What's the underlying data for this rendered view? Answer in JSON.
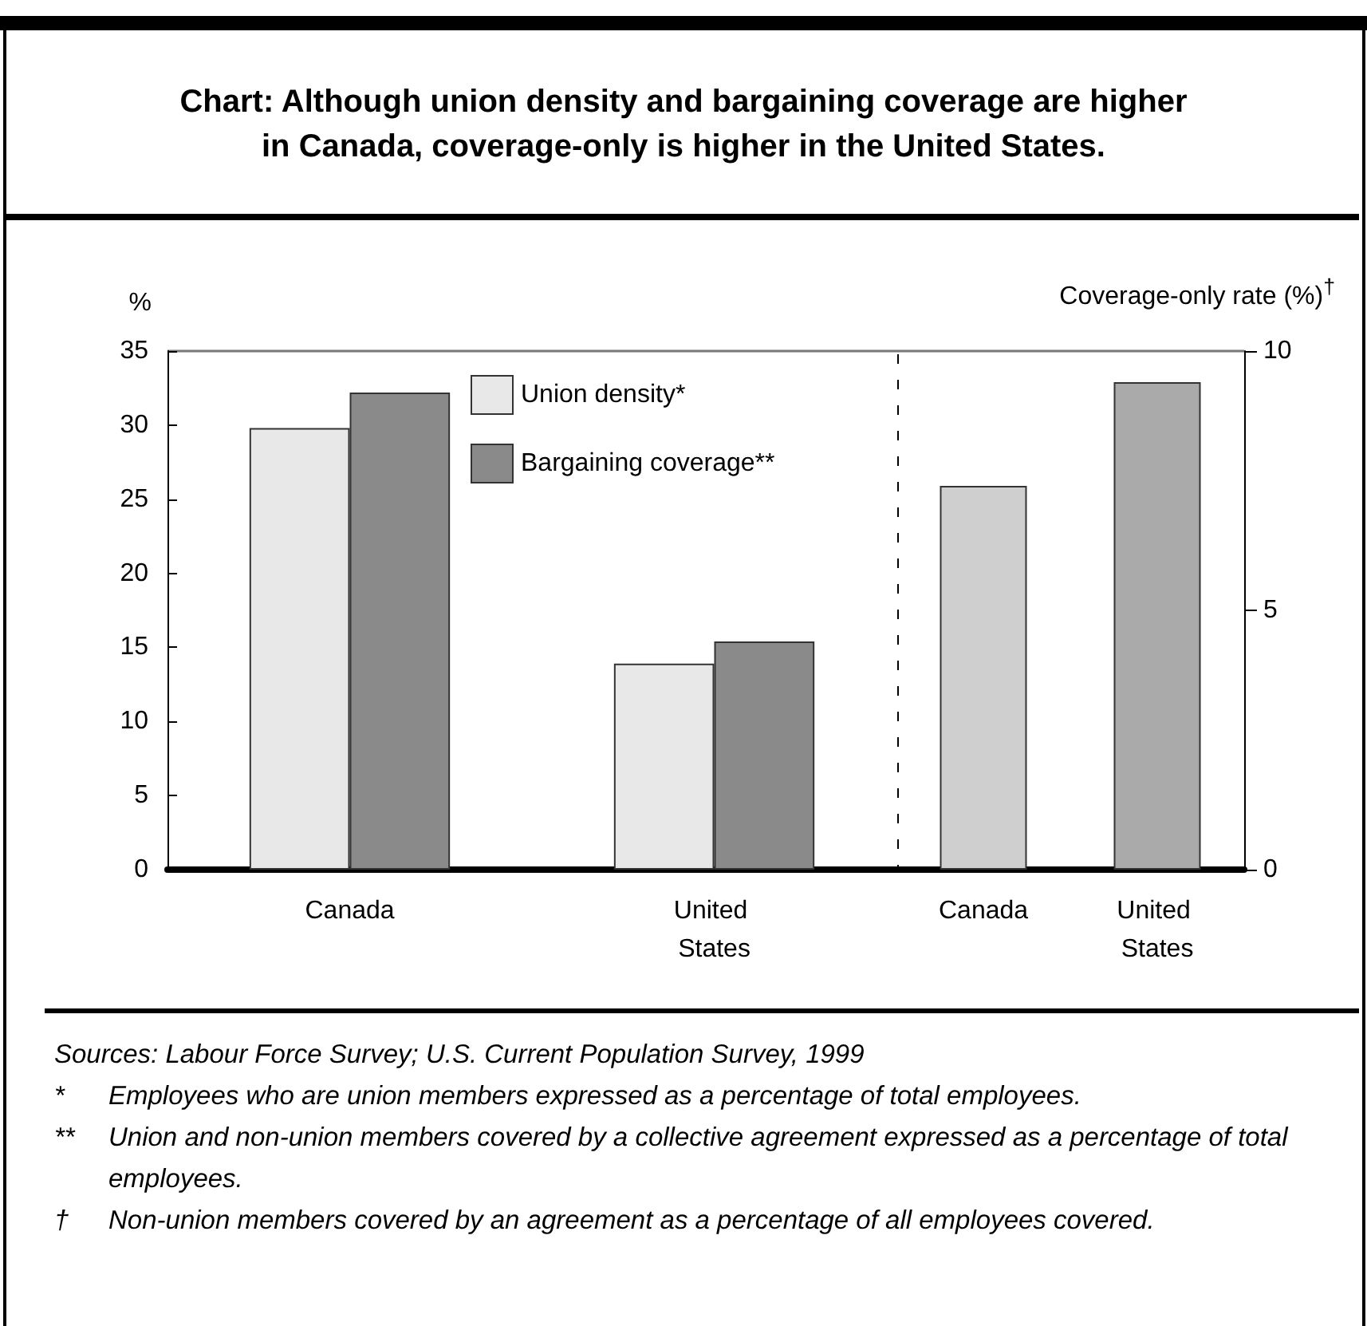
{
  "chart_data": [
    {
      "type": "bar",
      "title": "Chart: Although union density and bargaining coverage are higher in Canada, coverage-only is higher in the United States.",
      "ylabel": "%",
      "categories": [
        "Canada",
        "United States"
      ],
      "series": [
        {
          "name": "Union density*",
          "color": "#e8e8e8",
          "values": [
            29.8,
            13.9
          ]
        },
        {
          "name": "Bargaining coverage**",
          "color": "#8a8a8a",
          "values": [
            32.2,
            15.4
          ]
        }
      ],
      "ylim": [
        0,
        35
      ],
      "yticks": [
        0,
        5,
        10,
        15,
        20,
        25,
        30,
        35
      ],
      "legend": "top",
      "grid": false,
      "annotations": [
        "Sources: Labour Force Survey; U.S. Current Population Survey, 1999",
        "* Employees who are union members expressed as a percentage of total employees.",
        "** Union and non-union members covered by a collective agreement expressed as a percentage of total employees.",
        "† Non-union members covered by an agreement as a percentage of all employees covered."
      ]
    },
    {
      "type": "bar",
      "y2label": "Coverage-only rate (%)$^{†}$",
      "categories": [
        "Canada",
        "United States"
      ],
      "series": [
        {
          "axis": "y2",
          "colors": [
            "#cfcfcf",
            "#aaaaaa"
          ],
          "values": [
            7.4,
            9.4
          ]
        }
      ],
      "y2lim": [
        0,
        10
      ],
      "y2ticks": [
        0,
        5,
        10
      ],
      "grid": false
    }
  ]
}
